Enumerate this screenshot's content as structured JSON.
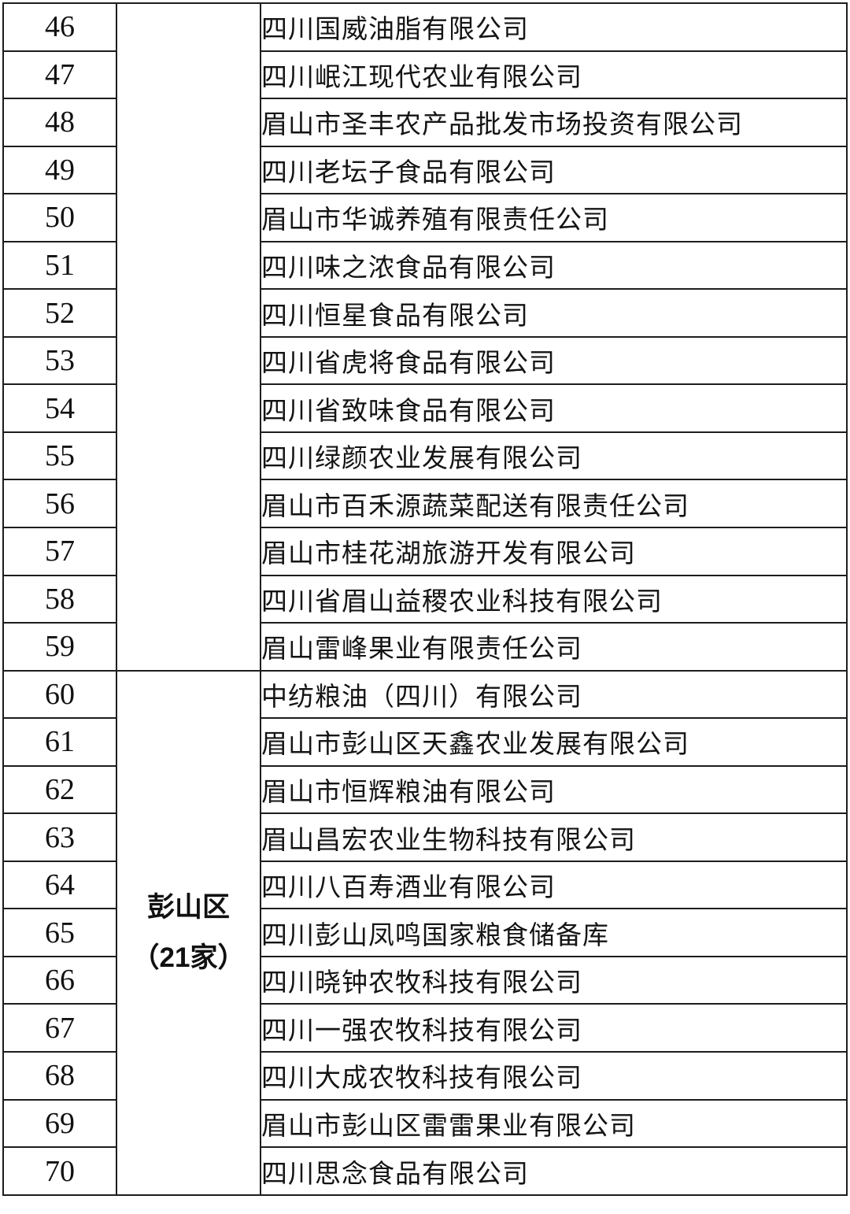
{
  "page": {
    "background_color": "#ffffff",
    "border_color": "#1d1d1d",
    "text_color": "#111111"
  },
  "table": {
    "groups": [
      {
        "region_lines": [],
        "rows": [
          {
            "no": "46",
            "company": "四川国威油脂有限公司"
          },
          {
            "no": "47",
            "company": "四川岷江现代农业有限公司"
          },
          {
            "no": "48",
            "company": "眉山市圣丰农产品批发市场投资有限公司"
          },
          {
            "no": "49",
            "company": "四川老坛子食品有限公司"
          },
          {
            "no": "50",
            "company": "眉山市华诚养殖有限责任公司"
          },
          {
            "no": "51",
            "company": "四川味之浓食品有限公司"
          },
          {
            "no": "52",
            "company": "四川恒星食品有限公司"
          },
          {
            "no": "53",
            "company": "四川省虎将食品有限公司"
          },
          {
            "no": "54",
            "company": "四川省致味食品有限公司"
          },
          {
            "no": "55",
            "company": "四川绿颜农业发展有限公司"
          },
          {
            "no": "56",
            "company": "眉山市百禾源蔬菜配送有限责任公司"
          },
          {
            "no": "57",
            "company": "眉山市桂花湖旅游开发有限公司"
          },
          {
            "no": "58",
            "company": "四川省眉山益稷农业科技有限公司"
          },
          {
            "no": "59",
            "company": "眉山雷峰果业有限责任公司"
          }
        ]
      },
      {
        "region_lines": [
          "彭山区",
          "（21家）"
        ],
        "rows": [
          {
            "no": "60",
            "company": "中纺粮油（四川）有限公司"
          },
          {
            "no": "61",
            "company": "眉山市彭山区天鑫农业发展有限公司"
          },
          {
            "no": "62",
            "company": "眉山市恒辉粮油有限公司"
          },
          {
            "no": "63",
            "company": "眉山昌宏农业生物科技有限公司"
          },
          {
            "no": "64",
            "company": "四川八百寿酒业有限公司"
          },
          {
            "no": "65",
            "company": "四川彭山凤鸣国家粮食储备库"
          },
          {
            "no": "66",
            "company": "四川晓钟农牧科技有限公司"
          },
          {
            "no": "67",
            "company": "四川一强农牧科技有限公司"
          },
          {
            "no": "68",
            "company": "四川大成农牧科技有限公司"
          },
          {
            "no": "69",
            "company": "眉山市彭山区雷雷果业有限公司"
          },
          {
            "no": "70",
            "company": "四川思念食品有限公司"
          }
        ]
      }
    ]
  }
}
